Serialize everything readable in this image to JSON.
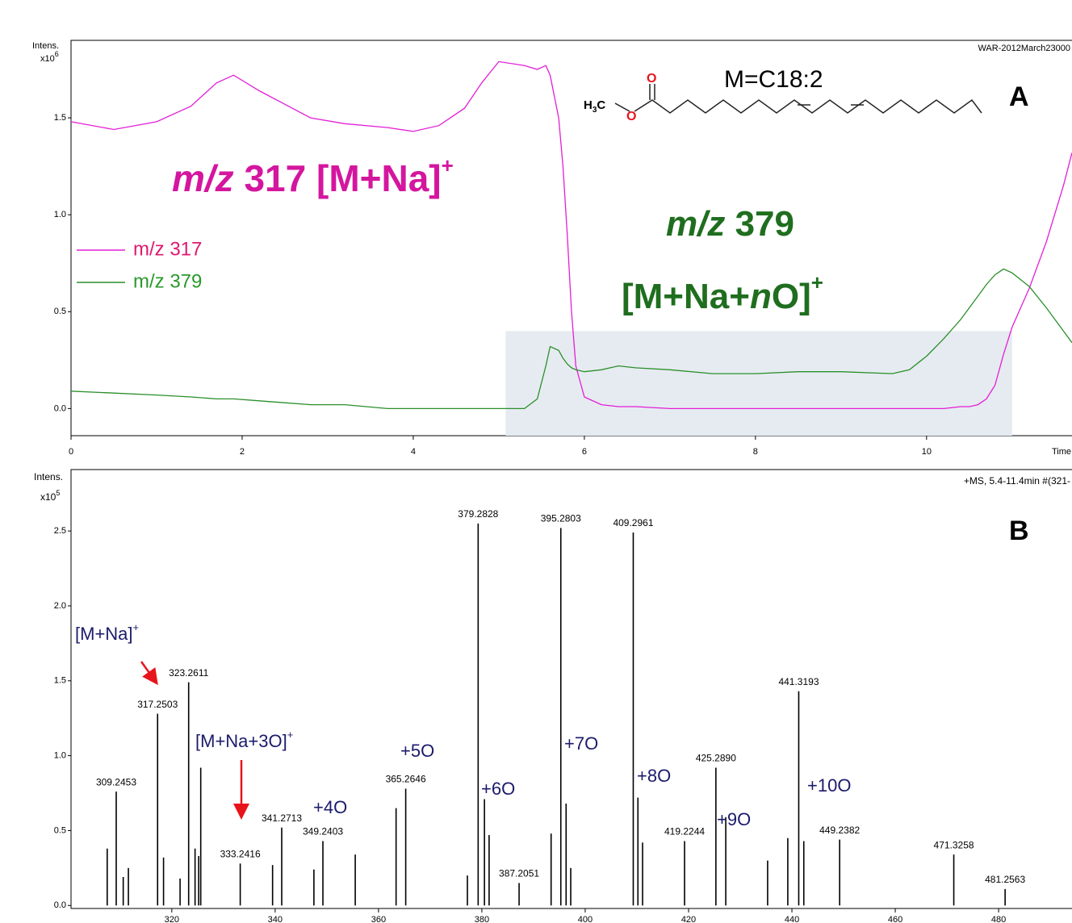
{
  "chart_data": [
    {
      "type": "line",
      "ylabel": [
        "Intens.",
        "x10",
        "6"
      ],
      "xlabel": "Time",
      "header": "WAR-2012March23000",
      "panel": "A",
      "x": [
        0,
        0.5,
        1,
        1.4,
        1.7,
        1.9,
        2.2,
        2.5,
        2.8,
        3.2,
        3.7,
        4,
        4.3,
        4.6,
        4.8,
        5,
        5.3,
        5.45,
        5.55,
        5.6,
        5.7,
        5.75,
        5.8,
        5.85,
        5.9,
        6,
        6.2,
        6.4,
        6.6,
        7,
        7.5,
        8,
        8.5,
        9,
        9.6,
        9.8,
        10,
        10.2,
        10.4,
        10.5,
        10.6,
        10.7,
        10.8,
        10.9,
        11,
        11.2,
        11.4,
        11.6,
        11.7
      ],
      "series": [
        {
          "name": "m/z 317",
          "color": "#e21fd6",
          "label_color": "#e0186e",
          "values": [
            1.48,
            1.44,
            1.48,
            1.56,
            1.68,
            1.72,
            1.64,
            1.57,
            1.5,
            1.47,
            1.45,
            1.43,
            1.46,
            1.55,
            1.68,
            1.79,
            1.77,
            1.75,
            1.77,
            1.72,
            1.5,
            1.25,
            0.9,
            0.5,
            0.22,
            0.06,
            0.02,
            0.01,
            0.01,
            0,
            0,
            0,
            0,
            0,
            0,
            0,
            0,
            0,
            0.01,
            0.01,
            0.02,
            0.05,
            0.12,
            0.28,
            0.42,
            0.62,
            0.86,
            1.15,
            1.32
          ]
        },
        {
          "name": "m/z 379",
          "color": "#2a8f2a",
          "label_color": "#2a9a2a",
          "values": [
            0.09,
            0.08,
            0.07,
            0.06,
            0.05,
            0.05,
            0.04,
            0.03,
            0.02,
            0.02,
            0,
            0,
            0,
            0,
            0,
            0,
            0,
            0.05,
            0.22,
            0.32,
            0.3,
            0.26,
            0.23,
            0.21,
            0.2,
            0.19,
            0.2,
            0.22,
            0.21,
            0.2,
            0.18,
            0.18,
            0.19,
            0.19,
            0.18,
            0.2,
            0.27,
            0.36,
            0.46,
            0.52,
            0.58,
            0.64,
            0.69,
            0.72,
            0.7,
            0.63,
            0.52,
            0.4,
            0.34
          ]
        }
      ],
      "highlight": {
        "x": [
          5.08,
          11.0
        ],
        "top": 0.4,
        "color": "#e6ebf1"
      },
      "xlim": [
        0,
        11.7
      ],
      "ylim": [
        -0.14,
        1.9
      ],
      "xticks": [
        0,
        2,
        4,
        6,
        8,
        10
      ],
      "yticks": [
        {
          "value": 0,
          "label": "0.0"
        },
        0.5,
        {
          "value": 1,
          "label": "1.0"
        },
        1.5
      ],
      "annotations": {
        "mz317": [
          "m/z",
          " 317 [M+Na]",
          "+"
        ],
        "mz379": [
          "m/z",
          " 379"
        ],
        "oxidized": [
          "[M+Na+",
          "n",
          "O]",
          "+"
        ],
        "formula": "M=C18:2",
        "methyl": [
          "H",
          "3",
          "C"
        ],
        "oxygen": [
          "O",
          "O"
        ]
      }
    },
    {
      "type": "stem",
      "ylabel": [
        "Intens.",
        "x10",
        "5"
      ],
      "header": "+MS, 5.4-11.4min #(321-",
      "panel": "B",
      "series": [
        {
          "color": "#000000",
          "show_labels": true,
          "x": [
            309.2453,
            317.2503,
            323.2611,
            333.2416,
            341.2713,
            349.2403,
            365.2646,
            379.2828,
            387.2051,
            395.2803,
            409.2961,
            419.2244,
            {
              "value": 425.289,
              "label": "425.2890"
            },
            441.3193,
            449.2382,
            471.3258,
            481.2563
          ],
          "values": [
            0.76,
            1.28,
            1.49,
            0.28,
            0.52,
            0.43,
            0.78,
            2.55,
            0.15,
            2.52,
            2.49,
            0.43,
            0.92,
            1.43,
            0.44,
            0.34,
            0.11
          ]
        },
        {
          "color": "#000000",
          "show_labels": false,
          "x": [
            307.5,
            310.6,
            311.6,
            318.4,
            321.6,
            324.5,
            325.2,
            325.6,
            339.5,
            347.5,
            355.5,
            363.4,
            377.2,
            380.5,
            381.4,
            393.4,
            396.3,
            397.2,
            410.2,
            411.1,
            427.2,
            435.3,
            439.2,
            442.3
          ],
          "values": [
            0.38,
            0.19,
            0.25,
            0.32,
            0.18,
            0.38,
            0.33,
            0.92,
            0.27,
            0.24,
            0.34,
            0.65,
            0.2,
            0.71,
            0.47,
            0.48,
            0.68,
            0.25,
            0.72,
            0.42,
            0.59,
            0.3,
            0.45,
            0.43
          ]
        }
      ],
      "xlim": [
        300.5,
        494.2
      ],
      "ylim": [
        -0.02,
        2.91
      ],
      "xticks": [
        320,
        340,
        360,
        380,
        400,
        420,
        440,
        460,
        480
      ],
      "yticks": [
        {
          "value": 0,
          "label": "0.0"
        },
        0.5,
        {
          "value": 1,
          "label": "1.0"
        },
        1.5,
        {
          "value": 2,
          "label": "2.0"
        },
        2.5
      ],
      "annotations": {
        "adduct": [
          "[M+Na]",
          "+"
        ],
        "adduct3o": [
          "[M+Na+3O]",
          "+"
        ],
        "oxygens": [
          "+4O",
          "+5O",
          "+6O",
          "+7O",
          "+8O",
          "+9O",
          "+10O"
        ]
      }
    }
  ]
}
